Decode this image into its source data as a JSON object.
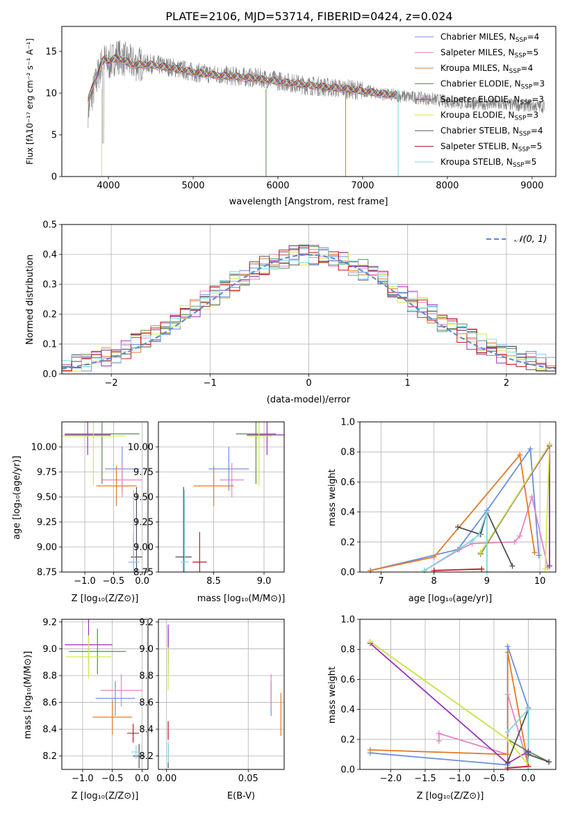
{
  "figure_title": "PLATE=2106, MJD=53714, FIBERID=0424, z=0.024",
  "colors": {
    "Chabrier MILES": "#6a8fe0",
    "Salpeter MILES": "#e584c4",
    "Kroupa MILES": "#e07b28",
    "Chabrier ELODIE": "#5a8a50",
    "Salpeter ELODIE": "#9a30b8",
    "Kroupa ELODIE": "#d4ea48",
    "Chabrier STELIB": "#505050",
    "Salpeter STELIB": "#c01828",
    "Kroupa STELIB": "#7fd6e4",
    "data": "#808080",
    "normal": "#5b8ed6"
  },
  "chart_data": [
    {
      "id": "spectrum",
      "type": "line",
      "xlabel": "wavelength [Angstrom, rest frame]",
      "ylabel": "Flux [fλ10⁻¹⁷ erg cm⁻² s⁻¹ A⁻¹]",
      "xlim": [
        3450,
        9280
      ],
      "ylim": [
        0,
        18
      ],
      "xticks": [
        "4000",
        "5000",
        "6000",
        "7000",
        "8000",
        "9000"
      ],
      "yticks": [
        "0",
        "5",
        "10",
        "15"
      ],
      "grid": false,
      "legend_position": "top-right",
      "series": [
        {
          "name": "Chabrier MILES, N",
          "sub": "SSP",
          "tail": "=4"
        },
        {
          "name": "Salpeter MILES, N",
          "sub": "SSP",
          "tail": "=5"
        },
        {
          "name": "Kroupa MILES, N",
          "sub": "SSP",
          "tail": "=4"
        },
        {
          "name": "Chabrier ELODIE, N",
          "sub": "SSP",
          "tail": "=3"
        },
        {
          "name": "Salpeter ELODIE, N",
          "sub": "SSP",
          "tail": "=3"
        },
        {
          "name": "Kroupa ELODIE, N",
          "sub": "SSP",
          "tail": "=3"
        },
        {
          "name": "Chabrier STELIB, N",
          "sub": "SSP",
          "tail": "=4"
        },
        {
          "name": "Salpeter STELIB, N",
          "sub": "SSP",
          "tail": "=5"
        },
        {
          "name": "Kroupa STELIB, N",
          "sub": "SSP",
          "tail": "=5"
        }
      ],
      "data_curve": [
        [
          3760,
          8
        ],
        [
          3800,
          9.5
        ],
        [
          3900,
          13
        ],
        [
          3950,
          14
        ],
        [
          4000,
          13.5
        ],
        [
          4100,
          14.5
        ],
        [
          4300,
          13.5
        ],
        [
          4500,
          13.5
        ],
        [
          4800,
          13
        ],
        [
          5000,
          12.5
        ],
        [
          5200,
          12.3
        ],
        [
          5500,
          12
        ],
        [
          5800,
          11.8
        ],
        [
          6000,
          11.5
        ],
        [
          6300,
          11
        ],
        [
          6600,
          10.7
        ],
        [
          7000,
          10.3
        ],
        [
          7300,
          9.8
        ],
        [
          7600,
          9.5
        ],
        [
          7800,
          9.3
        ],
        [
          8000,
          9
        ],
        [
          8200,
          8.8
        ],
        [
          8500,
          8.7
        ],
        [
          8800,
          8.6
        ],
        [
          9000,
          8.5
        ],
        [
          9150,
          8.4
        ]
      ],
      "model_curve": [
        [
          3760,
          9
        ],
        [
          3820,
          11
        ],
        [
          3900,
          13.2
        ],
        [
          3950,
          14.1
        ],
        [
          4000,
          13.8
        ],
        [
          4100,
          14.2
        ],
        [
          4300,
          13.4
        ],
        [
          4500,
          13.4
        ],
        [
          4800,
          12.9
        ],
        [
          5000,
          12.5
        ],
        [
          5300,
          12.1
        ],
        [
          5600,
          11.9
        ],
        [
          6000,
          11.4
        ],
        [
          6400,
          10.9
        ],
        [
          6800,
          10.5
        ],
        [
          7100,
          10.1
        ],
        [
          7400,
          9.7
        ]
      ]
    },
    {
      "id": "residuals",
      "type": "step",
      "xlabel": "(data-model)/error",
      "ylabel": "Normed distribution",
      "xlim": [
        -2.5,
        2.5
      ],
      "ylim": [
        0,
        0.5
      ],
      "xticks": [
        "−2",
        "−1",
        "0",
        "1",
        "2"
      ],
      "yticks": [
        "0.0",
        "0.1",
        "0.2",
        "0.3",
        "0.4",
        "0.5"
      ],
      "grid": true,
      "legend_position": "top-right",
      "legend": [
        "𝒩(0, 1)"
      ],
      "bin_width": 0.1,
      "normal_mean": 0,
      "normal_sigma": 1
    },
    {
      "id": "age_vs_Z",
      "type": "errorbar",
      "xlabel": "Z [log₁₀(Z/Z⊙)]",
      "ylabel": "age  [log₁₀(age/yr)]",
      "xlim": [
        -1.4,
        0.1
      ],
      "ylim": [
        8.75,
        10.25
      ],
      "xticks": [
        "−1.0",
        "−0.5",
        "0.0"
      ],
      "yticks": [
        "8.75",
        "9.00",
        "9.25",
        "9.50",
        "9.75",
        "10.00"
      ],
      "grid": true,
      "points": [
        {
          "series": "Chabrier MILES",
          "x": -0.35,
          "xerr": 0.3,
          "y": 9.78,
          "yerr": 0.22
        },
        {
          "series": "Salpeter MILES",
          "x": -0.35,
          "xerr": 0.35,
          "y": 9.67,
          "yerr": 0.17
        },
        {
          "series": "Kroupa MILES",
          "x": -0.45,
          "xerr": 0.35,
          "y": 9.61,
          "yerr": 0.2
        },
        {
          "series": "Chabrier ELODIE",
          "x": -0.7,
          "xerr": 0.65,
          "y": 10.13,
          "yerr": 0.5
        },
        {
          "series": "Salpeter ELODIE",
          "x": -0.95,
          "xerr": 0.4,
          "y": 10.12,
          "yerr": 0.2
        },
        {
          "series": "Kroupa ELODIE",
          "x": -0.85,
          "xerr": 0.55,
          "y": 10.11,
          "yerr": 0.5
        },
        {
          "series": "Chabrier STELIB",
          "x": -0.1,
          "xerr": 0.1,
          "y": 8.9,
          "yerr": 0.7
        },
        {
          "series": "Salpeter STELIB",
          "x": -0.15,
          "xerr": 0.07,
          "y": 8.85,
          "yerr": 0.3
        },
        {
          "series": "Kroupa STELIB",
          "x": -0.15,
          "xerr": 0.1,
          "y": 8.85,
          "yerr": 0.72
        }
      ]
    },
    {
      "id": "age_vs_mass",
      "type": "errorbar",
      "xlabel": "mass [log₁₀(M/M⊙)]",
      "ylabel": "",
      "xlim": [
        7.95,
        9.2
      ],
      "ylim": [
        8.75,
        10.25
      ],
      "xticks": [
        "8.5",
        "9.0"
      ],
      "yticks": [
        "8.75",
        "9.00",
        "9.25",
        "9.50",
        "9.75",
        "10.00"
      ],
      "grid": true,
      "points": [
        {
          "series": "Chabrier MILES",
          "x": 8.65,
          "xerr": 0.2,
          "y": 9.78,
          "yerr": 0.22
        },
        {
          "series": "Salpeter MILES",
          "x": 8.68,
          "xerr": 0.12,
          "y": 9.67,
          "yerr": 0.17
        },
        {
          "series": "Kroupa MILES",
          "x": 8.5,
          "xerr": 0.2,
          "y": 9.61,
          "yerr": 0.2
        },
        {
          "series": "Chabrier ELODIE",
          "x": 8.92,
          "xerr": 0.2,
          "y": 10.13,
          "yerr": 0.5
        },
        {
          "series": "Salpeter ELODIE",
          "x": 9.03,
          "xerr": 0.2,
          "y": 10.12,
          "yerr": 0.2
        },
        {
          "series": "Kroupa ELODIE",
          "x": 8.95,
          "xerr": 0.13,
          "y": 10.11,
          "yerr": 0.5
        },
        {
          "series": "Chabrier STELIB",
          "x": 8.2,
          "xerr": 0.08,
          "y": 8.9,
          "yerr": 0.7
        },
        {
          "series": "Salpeter STELIB",
          "x": 8.36,
          "xerr": 0.07,
          "y": 8.85,
          "yerr": 0.3
        },
        {
          "series": "Kroupa STELIB",
          "x": 8.21,
          "xerr": 0.04,
          "y": 8.85,
          "yerr": 0.72
        }
      ]
    },
    {
      "id": "weight_vs_age",
      "type": "line",
      "xlabel": "age  [log₁₀(age/yr)]",
      "ylabel": "mass weight",
      "xlim": [
        6.6,
        10.3
      ],
      "ylim": [
        0,
        1
      ],
      "xticks": [
        "7",
        "8",
        "9",
        "10"
      ],
      "yticks": [
        "0.0",
        "0.2",
        "0.4",
        "0.6",
        "0.8",
        "1.0"
      ],
      "grid": true,
      "series": [
        {
          "name": "Chabrier MILES",
          "points": [
            [
              6.8,
              0.01
            ],
            [
              8.45,
              0.15
            ],
            [
              9.0,
              0.41
            ],
            [
              9.82,
              0.82
            ],
            [
              9.98,
              0.11
            ]
          ]
        },
        {
          "name": "Salpeter MILES",
          "points": [
            [
              7.82,
              0.01
            ],
            [
              8.48,
              0.15
            ],
            [
              8.72,
              0.19
            ],
            [
              9.52,
              0.2
            ],
            [
              9.62,
              0.24
            ],
            [
              9.85,
              0.5
            ],
            [
              10.15,
              0.03
            ]
          ]
        },
        {
          "name": "Kroupa MILES",
          "points": [
            [
              6.8,
              0.01
            ],
            [
              8.0,
              0.1
            ],
            [
              9.62,
              0.78
            ],
            [
              9.9,
              0.13
            ]
          ]
        },
        {
          "name": "Chabrier ELODIE",
          "points": [
            [
              8.88,
              0.12
            ],
            [
              10.18,
              0.85
            ],
            [
              10.18,
              0.04
            ]
          ]
        },
        {
          "name": "Salpeter ELODIE",
          "points": [
            [
              8.88,
              0.13
            ],
            [
              10.18,
              0.84
            ],
            [
              10.18,
              0.04
            ]
          ]
        },
        {
          "name": "Kroupa ELODIE",
          "points": [
            [
              8.88,
              0.13
            ],
            [
              10.18,
              0.85
            ],
            [
              10.1,
              0.02
            ]
          ]
        },
        {
          "name": "Chabrier STELIB",
          "points": [
            [
              8.45,
              0.3
            ],
            [
              8.88,
              0.25
            ],
            [
              9.0,
              0.4
            ],
            [
              9.48,
              0.04
            ]
          ]
        },
        {
          "name": "Salpeter STELIB",
          "points": [
            [
              8.0,
              0.01
            ],
            [
              8.9,
              0.02
            ]
          ]
        },
        {
          "name": "Kroupa STELIB",
          "points": [
            [
              7.82,
              0.01
            ],
            [
              8.72,
              0.21
            ],
            [
              8.85,
              0.25
            ],
            [
              9.0,
              0.4
            ],
            [
              9.0,
              0.0
            ]
          ]
        }
      ]
    },
    {
      "id": "mass_vs_Z",
      "type": "errorbar",
      "xlabel": "Z [log₁₀(Z/Z⊙)]",
      "ylabel": "mass [log₁₀(M/M⊙)]",
      "xlim": [
        -1.35,
        0.1
      ],
      "ylim": [
        8.1,
        9.22
      ],
      "xticks": [
        "−1.0",
        "−0.5",
        "0.0"
      ],
      "yticks": [
        "8.2",
        "8.4",
        "8.6",
        "8.8",
        "9.0",
        "9.2"
      ],
      "grid": true,
      "points": [
        {
          "series": "Chabrier MILES",
          "x": -0.45,
          "xerr": 0.33,
          "y": 8.63,
          "yerr": 0.13
        },
        {
          "series": "Salpeter MILES",
          "x": -0.35,
          "xerr": 0.35,
          "y": 8.69,
          "yerr": 0.12
        },
        {
          "series": "Kroupa MILES",
          "x": -0.5,
          "xerr": 0.33,
          "y": 8.49,
          "yerr": 0.13
        },
        {
          "series": "Chabrier ELODIE",
          "x": -0.75,
          "xerr": 0.48,
          "y": 8.98,
          "yerr": 0.17
        },
        {
          "series": "Salpeter ELODIE",
          "x": -0.9,
          "xerr": 0.4,
          "y": 9.03,
          "yerr": 0.2
        },
        {
          "series": "Kroupa ELODIE",
          "x": -0.9,
          "xerr": 0.38,
          "y": 8.94,
          "yerr": 0.16
        },
        {
          "series": "Chabrier STELIB",
          "x": -0.05,
          "xerr": 0.1,
          "y": 8.2,
          "yerr": 0.09
        },
        {
          "series": "Salpeter STELIB",
          "x": -0.15,
          "xerr": 0.1,
          "y": 8.37,
          "yerr": 0.07
        },
        {
          "series": "Kroupa STELIB",
          "x": -0.1,
          "xerr": 0.08,
          "y": 8.23,
          "yerr": 0.05
        }
      ]
    },
    {
      "id": "mass_vs_EBV",
      "type": "errorbar",
      "xlabel": "E(B-V)",
      "ylabel": "",
      "xlim": [
        -0.005,
        0.072
      ],
      "ylim": [
        8.1,
        9.22
      ],
      "xticks": [
        "0.00",
        "0.05"
      ],
      "yticks": [
        "8.2",
        "8.4",
        "8.6",
        "8.8",
        "9.0",
        "9.2"
      ],
      "grid": true,
      "points": [
        {
          "series": "Chabrier MILES",
          "x": 0.064,
          "xerr": 0,
          "y": 8.63,
          "yerr": 0.13
        },
        {
          "series": "Salpeter MILES",
          "x": 0.064,
          "xerr": 0,
          "y": 8.69,
          "yerr": 0.12
        },
        {
          "series": "Kroupa MILES",
          "x": 0.07,
          "xerr": 0,
          "y": 8.51,
          "yerr": 0.16
        },
        {
          "series": "Chabrier ELODIE",
          "x": 0.001,
          "xerr": 0,
          "y": 8.98,
          "yerr": 0.17
        },
        {
          "series": "Salpeter ELODIE",
          "x": 0.001,
          "xerr": 0,
          "y": 9.03,
          "yerr": 0.15
        },
        {
          "series": "Kroupa ELODIE",
          "x": 0.001,
          "xerr": 0,
          "y": 8.85,
          "yerr": 0.16
        },
        {
          "series": "Chabrier STELIB",
          "x": 0.001,
          "xerr": 0,
          "y": 8.2,
          "yerr": 0.09
        },
        {
          "series": "Salpeter STELIB",
          "x": 0.001,
          "xerr": 0,
          "y": 8.39,
          "yerr": 0.07
        },
        {
          "series": "Kroupa STELIB",
          "x": 0.001,
          "xerr": 0,
          "y": 8.23,
          "yerr": 0.08
        }
      ]
    },
    {
      "id": "weight_vs_Z",
      "type": "line",
      "xlabel": "Z [log₁₀(Z/Z⊙)]",
      "ylabel": "mass weight",
      "xlim": [
        -2.45,
        0.4
      ],
      "ylim": [
        0,
        1
      ],
      "xticks": [
        "−2.0",
        "−1.5",
        "−1.0",
        "−0.5",
        "0.0"
      ],
      "yticks": [
        "0.0",
        "0.2",
        "0.4",
        "0.6",
        "0.8",
        "1.0"
      ],
      "grid": true,
      "series": [
        {
          "name": "Chabrier MILES",
          "points": [
            [
              -2.3,
              0.11
            ],
            [
              -0.3,
              0.03
            ],
            [
              -0.3,
              0.82
            ],
            [
              0.0,
              0.41
            ],
            [
              0.0,
              0.11
            ]
          ]
        },
        {
          "name": "Salpeter MILES",
          "points": [
            [
              -1.3,
              0.19
            ],
            [
              -1.3,
              0.24
            ],
            [
              -0.3,
              0.1
            ],
            [
              -0.3,
              0.5
            ],
            [
              0.0,
              0.03
            ]
          ]
        },
        {
          "name": "Kroupa MILES",
          "points": [
            [
              -2.3,
              0.13
            ],
            [
              -0.3,
              0.1
            ],
            [
              -0.3,
              0.78
            ],
            [
              0.0,
              0.03
            ]
          ]
        },
        {
          "name": "Chabrier ELODIE",
          "points": [
            [
              -2.3,
              0.85
            ],
            [
              -0.3,
              0.2
            ],
            [
              0.0,
              0.12
            ],
            [
              0.3,
              0.05
            ]
          ]
        },
        {
          "name": "Salpeter ELODIE",
          "points": [
            [
              -2.3,
              0.84
            ],
            [
              -0.3,
              0.04
            ],
            [
              0.0,
              0.12
            ]
          ]
        },
        {
          "name": "Kroupa ELODIE",
          "points": [
            [
              -2.3,
              0.85
            ],
            [
              -0.3,
              0.2
            ],
            [
              0.0,
              0.03
            ]
          ]
        },
        {
          "name": "Chabrier STELIB",
          "points": [
            [
              -0.3,
              0.05
            ],
            [
              0.0,
              0.4
            ],
            [
              0.0,
              0.1
            ],
            [
              0.3,
              0.05
            ]
          ]
        },
        {
          "name": "Salpeter STELIB",
          "points": [
            [
              -0.3,
              0.01
            ],
            [
              0.0,
              0.02
            ]
          ]
        },
        {
          "name": "Kroupa STELIB",
          "points": [
            [
              -0.3,
              0.25
            ],
            [
              0.0,
              0.4
            ],
            [
              0.0,
              0.0
            ]
          ]
        }
      ]
    }
  ]
}
